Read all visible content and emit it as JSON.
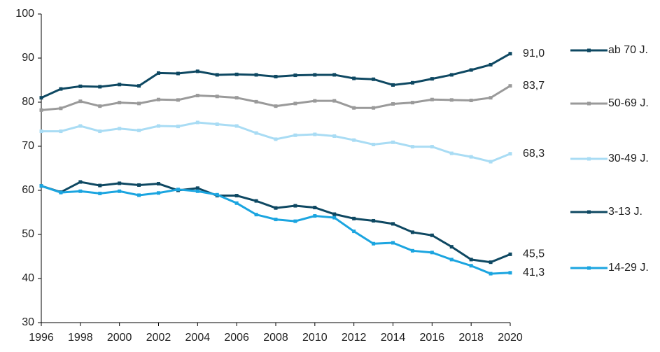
{
  "chart_data": {
    "type": "line",
    "x": [
      1996,
      1997,
      1998,
      1999,
      2000,
      2001,
      2002,
      2003,
      2004,
      2005,
      2006,
      2007,
      2008,
      2009,
      2010,
      2011,
      2012,
      2013,
      2014,
      2015,
      2016,
      2017,
      2018,
      2019,
      2020
    ],
    "xlim": [
      1996,
      2020
    ],
    "xticks": [
      1996,
      1998,
      2000,
      2002,
      2004,
      2006,
      2008,
      2010,
      2012,
      2014,
      2016,
      2018,
      2020
    ],
    "ylim": [
      30,
      100
    ],
    "yticks": [
      30,
      40,
      50,
      60,
      70,
      80,
      90,
      100
    ],
    "grid": false,
    "legend": "right",
    "series": [
      {
        "name": "ab 70 J.",
        "color": "#0e4862",
        "values": [
          81.0,
          83.0,
          83.6,
          83.5,
          84.0,
          83.7,
          86.6,
          86.5,
          87.0,
          86.2,
          86.3,
          86.2,
          85.8,
          86.1,
          86.2,
          86.2,
          85.4,
          85.2,
          83.9,
          84.4,
          85.3,
          86.2,
          87.3,
          88.5,
          91.0
        ],
        "value_labels": [
          null,
          null,
          null,
          null,
          null,
          null,
          null,
          null,
          null,
          null,
          null,
          null,
          null,
          null,
          null,
          null,
          null,
          null,
          null,
          null,
          null,
          null,
          null,
          null,
          "91,0"
        ]
      },
      {
        "name": "50-69 J.",
        "color": "#9a9a9a",
        "values": [
          78.2,
          78.6,
          80.2,
          79.1,
          79.9,
          79.7,
          80.6,
          80.5,
          81.5,
          81.3,
          81.0,
          80.1,
          79.1,
          79.7,
          80.3,
          80.3,
          78.7,
          78.7,
          79.6,
          79.9,
          80.6,
          80.5,
          80.4,
          81.0,
          83.7
        ],
        "value_labels": [
          null,
          null,
          null,
          null,
          null,
          null,
          null,
          null,
          null,
          null,
          null,
          null,
          null,
          null,
          null,
          null,
          null,
          null,
          null,
          null,
          null,
          null,
          null,
          null,
          "83,7"
        ]
      },
      {
        "name": "30-49 J.",
        "color": "#a9dcf4",
        "values": [
          73.4,
          73.4,
          74.6,
          73.4,
          74.0,
          73.6,
          74.6,
          74.5,
          75.4,
          75.0,
          74.6,
          73.0,
          71.6,
          72.5,
          72.7,
          72.3,
          71.4,
          70.4,
          70.9,
          69.9,
          69.9,
          68.4,
          67.6,
          66.5,
          68.3
        ],
        "value_labels": [
          null,
          null,
          null,
          null,
          null,
          null,
          null,
          null,
          null,
          null,
          null,
          null,
          null,
          null,
          null,
          null,
          null,
          null,
          null,
          null,
          null,
          null,
          null,
          null,
          "68,3"
        ]
      },
      {
        "name": "3-13 J.",
        "color": "#0e4862",
        "values": [
          61.0,
          59.6,
          61.9,
          61.1,
          61.6,
          61.2,
          61.5,
          60.0,
          60.5,
          58.8,
          58.8,
          57.6,
          56.0,
          56.5,
          56.1,
          54.6,
          53.6,
          53.1,
          52.4,
          50.5,
          49.8,
          47.2,
          44.3,
          43.7,
          45.5
        ],
        "value_labels": [
          null,
          null,
          null,
          null,
          null,
          null,
          null,
          null,
          null,
          null,
          null,
          null,
          null,
          null,
          null,
          null,
          null,
          null,
          null,
          null,
          null,
          null,
          null,
          null,
          "45,5"
        ]
      },
      {
        "name": "14-29 J.",
        "color": "#1ba5e0",
        "values": [
          61.0,
          59.5,
          59.8,
          59.3,
          59.8,
          58.9,
          59.4,
          60.2,
          59.8,
          59.0,
          57.1,
          54.5,
          53.4,
          53.0,
          54.2,
          53.8,
          50.7,
          47.9,
          48.1,
          46.3,
          45.9,
          44.3,
          42.9,
          41.1,
          41.3
        ],
        "value_labels": [
          null,
          null,
          null,
          null,
          null,
          null,
          null,
          null,
          null,
          null,
          null,
          null,
          null,
          null,
          null,
          null,
          null,
          null,
          null,
          null,
          null,
          null,
          null,
          null,
          "41,3"
        ]
      }
    ]
  }
}
